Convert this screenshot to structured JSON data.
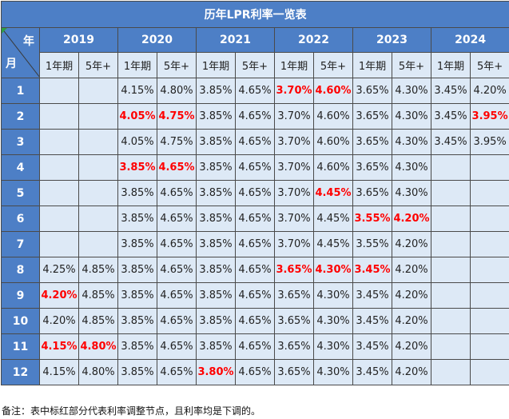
{
  "title": "历年LPR利率一览表",
  "corner": {
    "year_label": "年",
    "month_label": "月"
  },
  "years": [
    "2019",
    "2020",
    "2021",
    "2022",
    "2023",
    "2024"
  ],
  "terms": [
    "1年期",
    "5年+"
  ],
  "months": [
    "1",
    "2",
    "3",
    "4",
    "5",
    "6",
    "7",
    "8",
    "9",
    "10",
    "11",
    "12"
  ],
  "rates": [
    [
      "",
      "",
      "4.15%",
      "4.80%",
      "3.85%",
      "4.65%",
      "3.70%",
      "4.60%",
      "3.65%",
      "4.30%",
      "3.45%",
      "4.20%"
    ],
    [
      "",
      "",
      "4.05%",
      "4.75%",
      "3.85%",
      "4.65%",
      "3.70%",
      "4.60%",
      "3.65%",
      "4.30%",
      "3.45%",
      "3.95%"
    ],
    [
      "",
      "",
      "4.05%",
      "4.75%",
      "3.85%",
      "4.65%",
      "3.70%",
      "4.60%",
      "3.65%",
      "4.30%",
      "3.45%",
      "3.95%"
    ],
    [
      "",
      "",
      "3.85%",
      "4.65%",
      "3.85%",
      "4.65%",
      "3.70%",
      "4.60%",
      "3.65%",
      "4.30%",
      "",
      ""
    ],
    [
      "",
      "",
      "3.85%",
      "4.65%",
      "3.85%",
      "4.65%",
      "3.70%",
      "4.45%",
      "3.65%",
      "4.30%",
      "",
      ""
    ],
    [
      "",
      "",
      "3.85%",
      "4.65%",
      "3.85%",
      "4.65%",
      "3.70%",
      "4.45%",
      "3.55%",
      "4.20%",
      "",
      ""
    ],
    [
      "",
      "",
      "3.85%",
      "4.65%",
      "3.85%",
      "4.65%",
      "3.70%",
      "4.45%",
      "3.55%",
      "4.20%",
      "",
      ""
    ],
    [
      "4.25%",
      "4.85%",
      "3.85%",
      "4.65%",
      "3.85%",
      "4.65%",
      "3.65%",
      "4.30%",
      "3.45%",
      "4.20%",
      "",
      ""
    ],
    [
      "4.20%",
      "4.85%",
      "3.85%",
      "4.65%",
      "3.85%",
      "4.65%",
      "3.65%",
      "4.30%",
      "3.45%",
      "4.20%",
      "",
      ""
    ],
    [
      "4.20%",
      "4.85%",
      "3.85%",
      "4.65%",
      "3.85%",
      "4.65%",
      "3.65%",
      "4.30%",
      "3.45%",
      "4.20%",
      "",
      ""
    ],
    [
      "4.15%",
      "4.80%",
      "3.85%",
      "4.65%",
      "3.85%",
      "4.65%",
      "3.65%",
      "4.30%",
      "3.45%",
      "4.20%",
      "",
      ""
    ],
    [
      "4.15%",
      "4.80%",
      "3.85%",
      "4.65%",
      "3.80%",
      "4.65%",
      "3.65%",
      "4.30%",
      "3.45%",
      "4.20%",
      "",
      ""
    ]
  ],
  "highlights": [
    [
      false,
      false,
      false,
      false,
      false,
      false,
      true,
      true,
      false,
      false,
      false,
      false
    ],
    [
      false,
      false,
      true,
      true,
      false,
      false,
      false,
      false,
      false,
      false,
      false,
      true
    ],
    [
      false,
      false,
      false,
      false,
      false,
      false,
      false,
      false,
      false,
      false,
      false,
      false
    ],
    [
      false,
      false,
      true,
      true,
      false,
      false,
      false,
      false,
      false,
      false,
      false,
      false
    ],
    [
      false,
      false,
      false,
      false,
      false,
      false,
      false,
      true,
      false,
      false,
      false,
      false
    ],
    [
      false,
      false,
      false,
      false,
      false,
      false,
      false,
      false,
      true,
      true,
      false,
      false
    ],
    [
      false,
      false,
      false,
      false,
      false,
      false,
      false,
      false,
      false,
      false,
      false,
      false
    ],
    [
      false,
      false,
      false,
      false,
      false,
      false,
      true,
      true,
      true,
      false,
      false,
      false
    ],
    [
      true,
      false,
      false,
      false,
      false,
      false,
      false,
      false,
      false,
      false,
      false,
      false
    ],
    [
      false,
      false,
      false,
      false,
      false,
      false,
      false,
      false,
      false,
      false,
      false,
      false
    ],
    [
      true,
      true,
      false,
      false,
      false,
      false,
      false,
      false,
      false,
      false,
      false,
      false
    ],
    [
      false,
      false,
      false,
      false,
      true,
      false,
      false,
      false,
      false,
      false,
      false,
      false
    ]
  ],
  "colors": {
    "header_blue": "#4d7fc6",
    "cell_fill": "#dde9f6",
    "highlight_red": "#ff0000"
  },
  "note": "备注：表中标红部分代表利率调整节点，且利率均是下调的。"
}
